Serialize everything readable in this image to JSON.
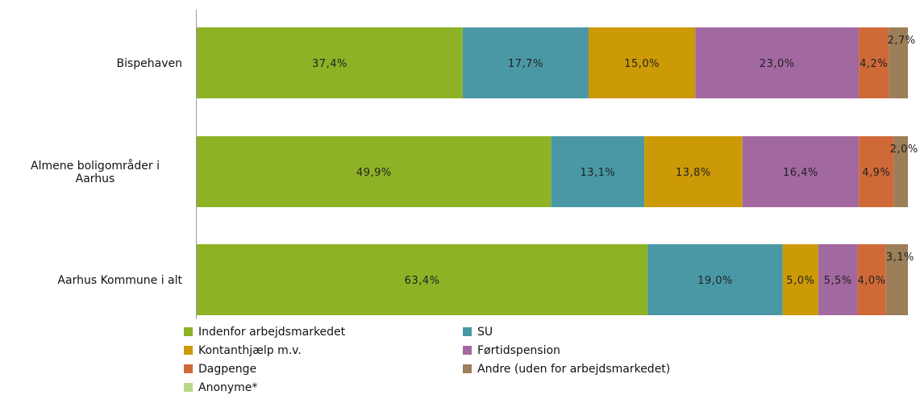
{
  "chart_data": {
    "type": "bar",
    "orientation": "horizontal",
    "stacked": "100%",
    "categories": [
      "Bispehaven",
      "Almene boligområder i Aarhus",
      "Aarhus Kommune i alt"
    ],
    "category_label_lines": [
      [
        "Bispehaven"
      ],
      [
        "Almene boligområder i",
        "Aarhus"
      ],
      [
        "Aarhus Kommune i alt"
      ]
    ],
    "series": [
      {
        "name": "Indenfor arbejdsmarkedet",
        "color": "#8db226",
        "values": [
          37.4,
          49.9,
          63.4
        ],
        "labels": [
          "37,4%",
          "49,9%",
          "63,4%"
        ]
      },
      {
        "name": "SU",
        "color": "#4a98a6",
        "values": [
          17.7,
          13.1,
          19.0
        ],
        "labels": [
          "17,7%",
          "13,1%",
          "19,0%"
        ]
      },
      {
        "name": "Kontanthjælp m.v.",
        "color": "#cc9a06",
        "values": [
          15.0,
          13.8,
          5.0
        ],
        "labels": [
          "15,0%",
          "13,8%",
          "5,0%"
        ]
      },
      {
        "name": "Førtidspension",
        "color": "#a268a0",
        "values": [
          23.0,
          16.4,
          5.5
        ],
        "labels": [
          "23,0%",
          "16,4%",
          "5,5%"
        ]
      },
      {
        "name": "Dagpenge",
        "color": "#cf6a38",
        "values": [
          4.2,
          4.9,
          4.0
        ],
        "labels": [
          "4,2%",
          "4,9%",
          "4,0%"
        ]
      },
      {
        "name": "Andre (uden for arbejdsmarkedet)",
        "color": "#9c7e58",
        "values": [
          2.7,
          2.0,
          3.1
        ],
        "labels": [
          "2,7%",
          "2,0%",
          "3,1%"
        ]
      },
      {
        "name": "Anonyme*",
        "color": "#b9d88a",
        "values": [
          0,
          0,
          0
        ],
        "labels": [
          "",
          "",
          ""
        ]
      }
    ],
    "xlim": [
      0,
      100
    ],
    "grid": false,
    "legend_position": "bottom"
  }
}
